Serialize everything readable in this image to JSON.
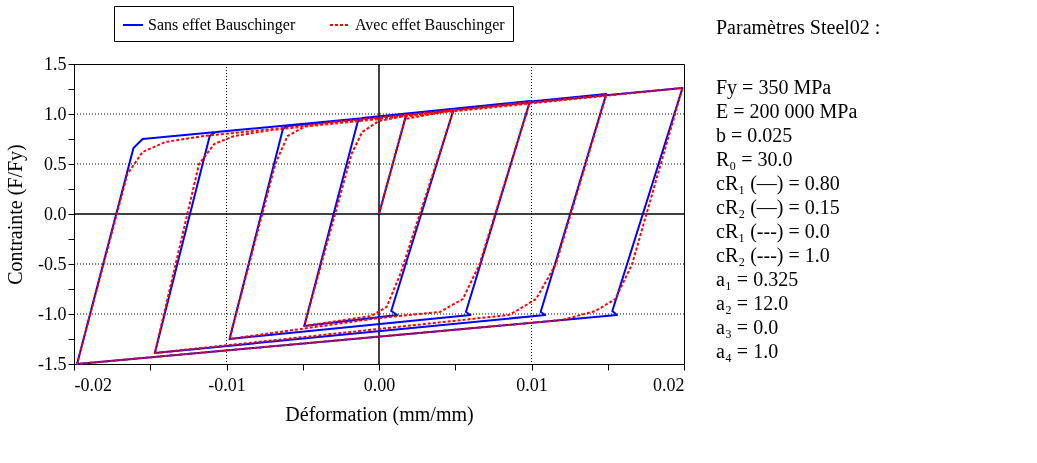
{
  "chart_data": {
    "type": "line",
    "xlabel": "Déformation (mm/mm)",
    "ylabel": "Contrainte (F/Fy)",
    "xlim": [
      -0.02,
      0.02
    ],
    "xticks": [
      {
        "value": -0.02,
        "label": "-0.02"
      },
      {
        "value": -0.015,
        "label": null
      },
      {
        "value": -0.01,
        "label": "-0.01"
      },
      {
        "value": -0.005,
        "label": null
      },
      {
        "value": 0,
        "label": "0.00"
      },
      {
        "value": 0.005,
        "label": null
      },
      {
        "value": 0.01,
        "label": "0.01"
      },
      {
        "value": 0.015,
        "label": null
      },
      {
        "value": 0.02,
        "label": "0.02"
      }
    ],
    "ylim": [
      -1.5,
      1.5
    ],
    "yticks": [
      {
        "value": -1.5,
        "label": "-1.5"
      },
      {
        "value": -1.25,
        "label": null
      },
      {
        "value": -1.0,
        "label": "-1.0"
      },
      {
        "value": -0.75,
        "label": null
      },
      {
        "value": -0.5,
        "label": "-0.5"
      },
      {
        "value": -0.25,
        "label": null
      },
      {
        "value": 0,
        "label": "0.0"
      },
      {
        "value": 0.25,
        "label": null
      },
      {
        "value": 0.5,
        "label": "0.5"
      },
      {
        "value": 0.75,
        "label": null
      },
      {
        "value": 1.0,
        "label": "1.0"
      },
      {
        "value": 1.25,
        "label": null
      },
      {
        "value": 1.5,
        "label": "1.5"
      }
    ],
    "grid": true,
    "legend": "top",
    "series": [
      {
        "name": "Sans effet Bauschinger",
        "color": "#0000ff",
        "line_style": "solid",
        "x": [
          0,
          0.0018,
          0.0049,
          0.0008,
          0.0012,
          -0.0049,
          -0.0014,
          -0.0011,
          0.0099,
          0.0057,
          0.006,
          -0.0098,
          -0.0063,
          -0.006,
          0.0149,
          0.0106,
          0.0109,
          -0.0147,
          -0.0111,
          -0.0107,
          0.0199,
          0.0153,
          0.0156,
          -0.0198,
          -0.0161,
          -0.0155,
          0.0199
        ],
        "values": [
          0,
          1.0,
          1.05,
          -0.97,
          -1.01,
          -1.12,
          0.92,
          0.96,
          1.13,
          -0.98,
          -1.01,
          -1.25,
          0.85,
          0.88,
          1.2,
          -0.98,
          -1.01,
          -1.39,
          0.78,
          0.82,
          1.26,
          -0.97,
          -1.01,
          -1.5,
          0.66,
          0.75,
          1.26
        ]
      },
      {
        "name": "Avec effet Bauschinger",
        "color": "#ff0000",
        "line_style": "dashed",
        "x": [
          0,
          0.0017,
          0.0049,
          0.0014,
          0.0005,
          -0.0005,
          -0.0049,
          -0.0018,
          -0.0011,
          0.0,
          0.002,
          0.0099,
          0.0066,
          0.0055,
          0.004,
          0.0,
          -0.0098,
          -0.0068,
          -0.006,
          -0.0048,
          -0.003,
          0.0149,
          0.0116,
          0.0103,
          0.009,
          0.0085,
          -0.0147,
          -0.0118,
          -0.0108,
          -0.0095,
          -0.007,
          0.0199,
          0.0166,
          0.0155,
          0.0142,
          0.012,
          -0.0198,
          -0.0165,
          -0.0155,
          -0.014,
          -0.0115,
          0.0199
        ],
        "values": [
          0,
          0.95,
          1.04,
          -0.6,
          -0.93,
          -1.02,
          -1.12,
          0.6,
          0.82,
          0.93,
          0.99,
          1.12,
          -0.5,
          -0.85,
          -0.98,
          -1.04,
          -1.25,
          0.5,
          0.78,
          0.88,
          0.92,
          1.19,
          -0.5,
          -0.85,
          -0.97,
          -1.01,
          -1.39,
          0.5,
          0.7,
          0.78,
          0.84,
          1.26,
          -0.5,
          -0.85,
          -0.97,
          -1.06,
          -1.5,
          0.4,
          0.62,
          0.72,
          0.78,
          1.26
        ]
      }
    ],
    "annotations": [
      "Paramètres Steel02 :",
      "Fy = 350 MPa",
      "E = 200 000 MPa",
      "b = 0.025",
      "R₀ = 30.0",
      "cR₁ (—) = 0.80",
      "cR₂ (—) = 0.15",
      "cR₁ (---) = 0.0",
      "cR₂ (---) = 1.0",
      "a₁ = 0.325",
      "a₂ = 12.0",
      "a₃ = 0.0",
      "a₄ = 1.0"
    ]
  }
}
